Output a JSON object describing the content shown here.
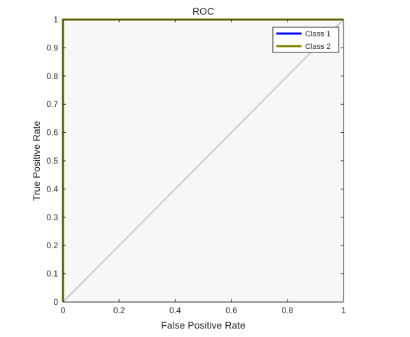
{
  "chart_data": {
    "type": "line",
    "title": "ROC",
    "xlabel": "False Positive Rate",
    "ylabel": "True Positive Rate",
    "xlim": [
      0,
      1
    ],
    "ylim": [
      0,
      1
    ],
    "x_ticks": [
      "0",
      "0.2",
      "0.4",
      "0.6",
      "0.8",
      "1"
    ],
    "y_ticks": [
      "0",
      "0.1",
      "0.2",
      "0.3",
      "0.4",
      "0.5",
      "0.6",
      "0.7",
      "0.8",
      "0.9",
      "1"
    ],
    "grid": false,
    "legend_position": "top-right",
    "series": [
      {
        "name": "Class 1",
        "color": "#0000ff",
        "x": [
          0,
          0,
          1
        ],
        "y": [
          0,
          1,
          1
        ]
      },
      {
        "name": "Class 2",
        "color": "#808000",
        "x": [
          0,
          0,
          1
        ],
        "y": [
          0,
          1,
          1
        ]
      }
    ],
    "reference_line": {
      "color": "#c8c8c8",
      "x": [
        0,
        1
      ],
      "y": [
        0,
        1
      ]
    },
    "plot_background": "#f7f7f7"
  }
}
